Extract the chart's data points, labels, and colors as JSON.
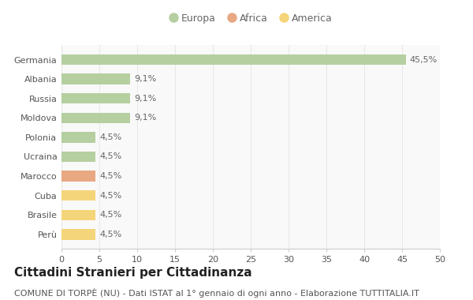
{
  "countries": [
    "Germania",
    "Albania",
    "Russia",
    "Moldova",
    "Polonia",
    "Ucraina",
    "Marocco",
    "Cuba",
    "Brasile",
    "Perù"
  ],
  "values": [
    45.5,
    9.1,
    9.1,
    9.1,
    4.5,
    4.5,
    4.5,
    4.5,
    4.5,
    4.5
  ],
  "labels": [
    "45,5%",
    "9,1%",
    "9,1%",
    "9,1%",
    "4,5%",
    "4,5%",
    "4,5%",
    "4,5%",
    "4,5%",
    "4,5%"
  ],
  "colors": [
    "#b5cfa0",
    "#b5cfa0",
    "#b5cfa0",
    "#b5cfa0",
    "#b5cfa0",
    "#b5cfa0",
    "#e8a882",
    "#f5d57a",
    "#f5d57a",
    "#f5d57a"
  ],
  "legend_labels": [
    "Europa",
    "Africa",
    "America"
  ],
  "legend_colors": [
    "#b5cfa0",
    "#e8a882",
    "#f5d57a"
  ],
  "title": "Cittadini Stranieri per Cittadinanza",
  "subtitle": "COMUNE DI TORPÈ (NU) - Dati ISTAT al 1° gennaio di ogni anno - Elaborazione TUTTITALIA.IT",
  "xlim": [
    0,
    50
  ],
  "xticks": [
    0,
    5,
    10,
    15,
    20,
    25,
    30,
    35,
    40,
    45,
    50
  ],
  "background_color": "#ffffff",
  "plot_bg_color": "#f9f9f9",
  "grid_color": "#e8e8e8",
  "bar_height": 0.55,
  "title_fontsize": 11,
  "subtitle_fontsize": 8,
  "label_fontsize": 8,
  "tick_fontsize": 8,
  "legend_fontsize": 9
}
